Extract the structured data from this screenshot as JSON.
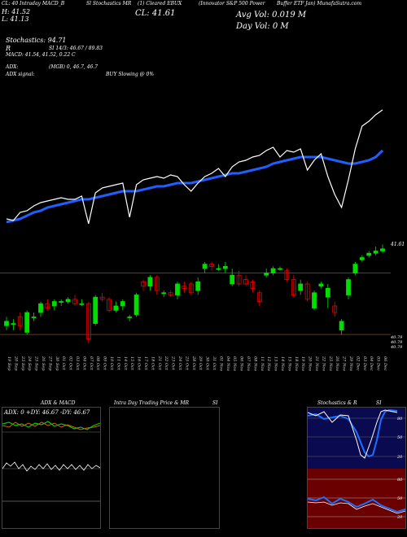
{
  "header": {
    "line1": [
      "CL: 40 Intraday MACD_B",
      "Sl Stochastics MR",
      "(1) Cleared EBUX",
      "(Innovator S&P 500 Power",
      "Buffer ETF Jan) MunafaSutra.com"
    ],
    "h": "H: 41.52",
    "l": "L: 41.13",
    "cl": "CL: 41.61",
    "avg_vol": "Avg Vol: 0.019 M",
    "day_vol": "Day Vol: 0   M",
    "stochastics": "Stochastics: 94.71",
    "r_label": "R",
    "si": "SI 14/3: 46.67 / 89.83",
    "macd": "MACD: 41.54,  41.52,  0.22  C",
    "adx": "ADX:",
    "adx_val": "(MGB) 0,  46.7,  46.7",
    "adx_signal": "ADX  signal:",
    "buy_signal": "BUY Slowing @ 0%"
  },
  "price_axis": {
    "top": "41.61",
    "mid1": "40.79",
    "mid2": "40.79",
    "mid3": "40.79"
  },
  "dates": [
    "19 Sep",
    "20 Sep",
    "23 Sep",
    "24 Sep",
    "25 Sep",
    "26 Sep",
    "27 Sep",
    "30 Sep",
    "01 Oct",
    "02 Oct",
    "03 Oct",
    "04 Oct",
    "07 Oct",
    "08 Oct",
    "09 Oct",
    "10 Oct",
    "11 Oct",
    "14 Oct",
    "15 Oct",
    "16 Oct",
    "17 Oct",
    "18 Oct",
    "21 Oct",
    "22 Oct",
    "23 Oct",
    "24 Oct",
    "25 Oct",
    "28 Oct",
    "29 Oct",
    "30 Oct",
    "31 Oct",
    "01 Nov",
    "04 Nov",
    "05 Nov",
    "06 Nov",
    "07 Nov",
    "08 Nov",
    "11 Nov",
    "12 Nov",
    "13 Nov",
    "14 Nov",
    "15 Nov",
    "18 Nov",
    "19 Nov",
    "20 Nov",
    "21 Nov",
    "22 Nov",
    "25 Nov",
    "26 Nov",
    "27 Nov",
    "29 Nov",
    "02 Dec",
    "03 Dec",
    "04 Dec",
    "05 Dec",
    "06 Dec"
  ],
  "panels": {
    "adx_title": "ADX  & MACD",
    "adx_readout": "ADX: 0   +DY: 46.67  -DY: 46.67",
    "intraday_title": "Intra  Day Trading Price  & MR",
    "intraday_si": "SI",
    "stoch_title": "Stochastics & R",
    "stoch_si": "SI",
    "stoch_ticks": [
      "80",
      "50",
      "20"
    ],
    "rsi_ticks": [
      "80",
      "50",
      "20"
    ]
  },
  "colors": {
    "up": "#00dd00",
    "down": "#ee0000",
    "ma": "#1f5fff",
    "price": "#ffffff"
  },
  "chart_data": [
    {
      "type": "line",
      "title": "",
      "series": [
        {
          "values": [
            40.88,
            40.87,
            40.92,
            40.93,
            40.96,
            40.98,
            40.99,
            41.0,
            41.01,
            41.0,
            41.0,
            41.02,
            40.85,
            41.04,
            41.07,
            41.08,
            41.09,
            41.1,
            40.89,
            41.09,
            41.12,
            41.13,
            41.14,
            41.13,
            41.15,
            41.14,
            41.09,
            41.05,
            41.1,
            41.14,
            41.16,
            41.19,
            41.14,
            41.2,
            41.23,
            41.24,
            41.26,
            41.27,
            41.3,
            41.32,
            41.26,
            41.3,
            41.29,
            41.31,
            41.18,
            41.24,
            41.28,
            41.14,
            41.03,
            40.95,
            41.12,
            41.31,
            41.45,
            41.48,
            41.52,
            41.55
          ]
        },
        {
          "values": [
            40.86,
            40.87,
            40.88,
            40.9,
            40.92,
            40.93,
            40.95,
            40.96,
            40.97,
            40.98,
            40.99,
            41.0,
            41.0,
            41.01,
            41.02,
            41.03,
            41.04,
            41.05,
            41.05,
            41.05,
            41.06,
            41.07,
            41.08,
            41.08,
            41.09,
            41.1,
            41.1,
            41.1,
            41.11,
            41.12,
            41.13,
            41.14,
            41.15,
            41.16,
            41.16,
            41.17,
            41.18,
            41.19,
            41.2,
            41.22,
            41.23,
            41.24,
            41.25,
            41.26,
            41.26,
            41.26,
            41.26,
            41.25,
            41.24,
            41.23,
            41.22,
            41.22,
            41.23,
            41.24,
            41.26,
            41.3
          ]
        }
      ],
      "ylim": [
        40.8,
        41.7
      ]
    },
    {
      "type": "bar",
      "title": "",
      "candles": [
        [
          40.86,
          40.88,
          40.84,
          40.9
        ],
        [
          40.87,
          40.87,
          40.84,
          40.89
        ],
        [
          40.9,
          40.86,
          40.84,
          40.92
        ],
        [
          40.83,
          40.92,
          40.82,
          40.93
        ],
        [
          40.9,
          40.9,
          40.88,
          40.92
        ],
        [
          40.92,
          40.96,
          40.9,
          40.97
        ],
        [
          40.96,
          40.94,
          40.93,
          40.98
        ],
        [
          40.95,
          40.97,
          40.93,
          40.98
        ],
        [
          40.97,
          40.97,
          40.95,
          40.98
        ],
        [
          40.97,
          40.98,
          40.96,
          40.99
        ],
        [
          40.98,
          40.96,
          40.95,
          41.0
        ],
        [
          40.96,
          40.96,
          40.95,
          40.98
        ],
        [
          40.96,
          40.8,
          40.78,
          40.97
        ],
        [
          40.87,
          40.99,
          40.86,
          41.0
        ],
        [
          40.99,
          40.98,
          40.97,
          41.01
        ],
        [
          40.98,
          40.93,
          40.92,
          40.99
        ],
        [
          40.93,
          40.95,
          40.92,
          40.97
        ],
        [
          40.95,
          40.97,
          40.93,
          40.98
        ],
        [
          40.9,
          40.9,
          40.88,
          40.91
        ],
        [
          40.91,
          41.0,
          40.9,
          41.01
        ],
        [
          41.06,
          41.04,
          41.02,
          41.07
        ],
        [
          41.04,
          41.08,
          41.02,
          41.09
        ],
        [
          41.08,
          41.02,
          41.0,
          41.09
        ],
        [
          41.01,
          41.01,
          40.99,
          41.02
        ],
        [
          41.01,
          41.0,
          40.99,
          41.02
        ],
        [
          41.0,
          41.05,
          40.98,
          41.06
        ],
        [
          41.04,
          41.03,
          41.01,
          41.06
        ],
        [
          41.05,
          41.01,
          41.0,
          41.06
        ],
        [
          41.02,
          41.06,
          41.0,
          41.08
        ],
        [
          41.12,
          41.14,
          41.1,
          41.15
        ],
        [
          41.14,
          41.13,
          41.11,
          41.15
        ],
        [
          41.12,
          41.12,
          41.11,
          41.14
        ],
        [
          41.12,
          41.13,
          41.1,
          41.15
        ],
        [
          41.05,
          41.09,
          41.04,
          41.12
        ],
        [
          41.09,
          41.05,
          41.04,
          41.11
        ],
        [
          41.07,
          41.05,
          41.04,
          41.09
        ],
        [
          41.06,
          41.03,
          41.01,
          41.07
        ],
        [
          41.01,
          40.97,
          40.95,
          41.02
        ],
        [
          41.09,
          41.1,
          41.08,
          41.12
        ],
        [
          41.1,
          41.12,
          41.09,
          41.13
        ],
        [
          41.12,
          41.12,
          41.11,
          41.13
        ],
        [
          41.11,
          41.07,
          41.06,
          41.12
        ],
        [
          41.07,
          41.0,
          40.99,
          41.09
        ],
        [
          41.02,
          41.05,
          41.0,
          41.07
        ],
        [
          41.05,
          40.98,
          40.97,
          41.06
        ],
        [
          40.94,
          41.01,
          40.93,
          41.02
        ],
        [
          41.04,
          41.05,
          41.03,
          41.06
        ],
        [
          40.99,
          41.03,
          40.94,
          41.05
        ],
        [
          40.95,
          40.92,
          40.9,
          40.97
        ],
        [
          40.84,
          40.88,
          40.82,
          40.89
        ],
        [
          41.0,
          41.07,
          40.98,
          41.08
        ],
        [
          41.1,
          41.14,
          41.09,
          41.15
        ],
        [
          41.16,
          41.17,
          41.15,
          41.18
        ],
        [
          41.18,
          41.19,
          41.17,
          41.2
        ],
        [
          41.19,
          41.2,
          41.18,
          41.22
        ],
        [
          41.2,
          41.21,
          41.19,
          41.23
        ]
      ],
      "ylim": [
        40.75,
        41.25
      ]
    }
  ]
}
